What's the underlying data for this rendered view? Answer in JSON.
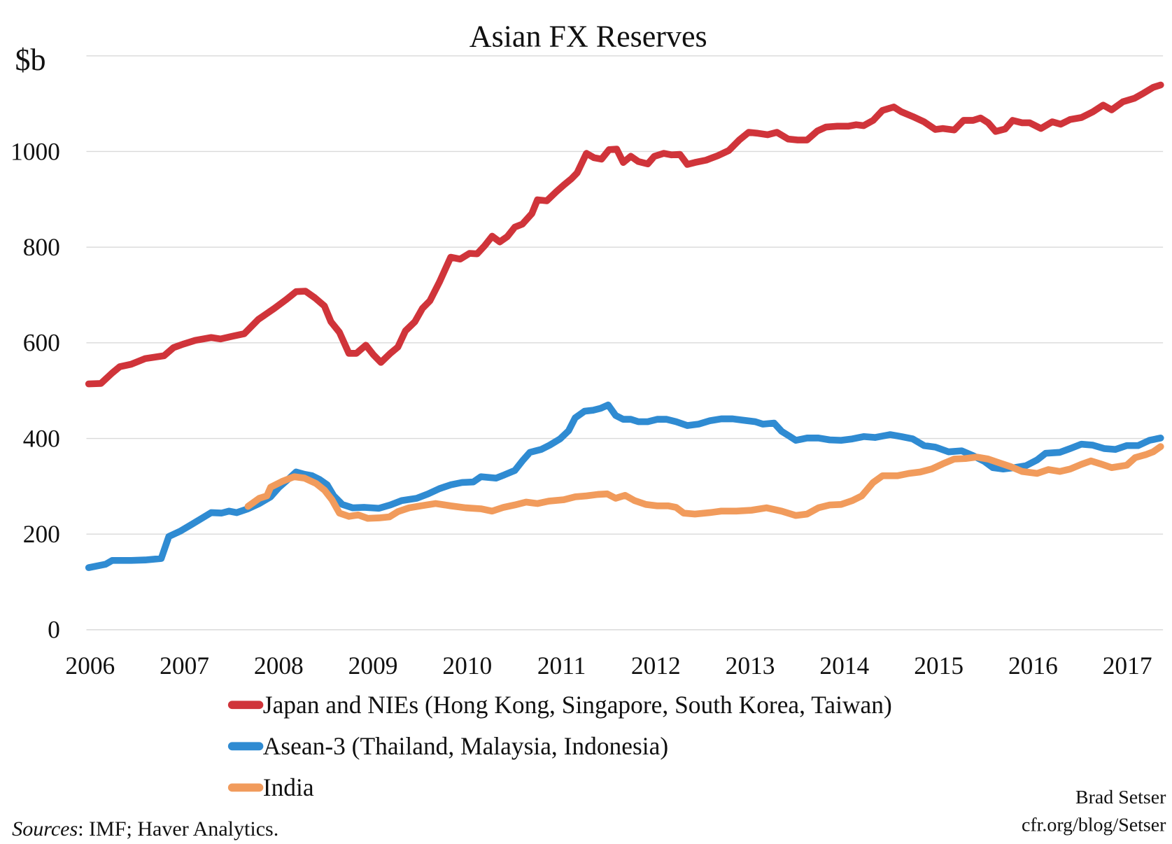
{
  "chart_data": {
    "type": "line",
    "title": "Asian FX Reserves",
    "ylabel": "$b",
    "xlabel": "",
    "ylim": [
      0,
      1200
    ],
    "yticks": [
      0,
      200,
      400,
      600,
      800,
      1000
    ],
    "xlim": [
      2006,
      2017.4
    ],
    "xticks": [
      "2006",
      "2007",
      "2008",
      "2009",
      "2010",
      "2011",
      "2012",
      "2013",
      "2014",
      "2015",
      "2016",
      "2017"
    ],
    "grid": true,
    "legend_position": "bottom",
    "series": [
      {
        "name": "Japan and NIEs (Hong Kong, Singapore, South Korea, Taiwan)",
        "color": "#d0343a",
        "points": [
          [
            2006.0,
            514
          ],
          [
            2006.13,
            515
          ],
          [
            2006.25,
            537
          ],
          [
            2006.33,
            550
          ],
          [
            2006.45,
            555
          ],
          [
            2006.6,
            567
          ],
          [
            2006.8,
            573
          ],
          [
            2006.9,
            590
          ],
          [
            2007.0,
            597
          ],
          [
            2007.13,
            605
          ],
          [
            2007.3,
            611
          ],
          [
            2007.4,
            608
          ],
          [
            2007.53,
            614
          ],
          [
            2007.65,
            619
          ],
          [
            2007.8,
            649
          ],
          [
            2007.97,
            672
          ],
          [
            2008.1,
            691
          ],
          [
            2008.2,
            707
          ],
          [
            2008.3,
            708
          ],
          [
            2008.4,
            694
          ],
          [
            2008.5,
            677
          ],
          [
            2008.57,
            644
          ],
          [
            2008.66,
            622
          ],
          [
            2008.76,
            578
          ],
          [
            2008.84,
            578
          ],
          [
            2008.94,
            595
          ],
          [
            2009.02,
            575
          ],
          [
            2009.1,
            559
          ],
          [
            2009.2,
            578
          ],
          [
            2009.28,
            591
          ],
          [
            2009.36,
            625
          ],
          [
            2009.46,
            644
          ],
          [
            2009.54,
            672
          ],
          [
            2009.62,
            688
          ],
          [
            2009.72,
            727
          ],
          [
            2009.84,
            779
          ],
          [
            2009.94,
            775
          ],
          [
            2010.04,
            787
          ],
          [
            2010.12,
            786
          ],
          [
            2010.2,
            803
          ],
          [
            2010.28,
            823
          ],
          [
            2010.36,
            811
          ],
          [
            2010.44,
            822
          ],
          [
            2010.52,
            842
          ],
          [
            2010.6,
            848
          ],
          [
            2010.7,
            870
          ],
          [
            2010.76,
            899
          ],
          [
            2010.86,
            897
          ],
          [
            2010.96,
            916
          ],
          [
            2011.04,
            930
          ],
          [
            2011.12,
            943
          ],
          [
            2011.18,
            955
          ],
          [
            2011.28,
            996
          ],
          [
            2011.36,
            987
          ],
          [
            2011.44,
            984
          ],
          [
            2011.52,
            1004
          ],
          [
            2011.6,
            1005
          ],
          [
            2011.67,
            977
          ],
          [
            2011.75,
            990
          ],
          [
            2011.83,
            979
          ],
          [
            2011.93,
            974
          ],
          [
            2012.0,
            990
          ],
          [
            2012.1,
            996
          ],
          [
            2012.18,
            993
          ],
          [
            2012.27,
            994
          ],
          [
            2012.35,
            973
          ],
          [
            2012.43,
            977
          ],
          [
            2012.55,
            982
          ],
          [
            2012.67,
            991
          ],
          [
            2012.79,
            1002
          ],
          [
            2012.9,
            1024
          ],
          [
            2013.0,
            1040
          ],
          [
            2013.1,
            1038
          ],
          [
            2013.2,
            1035
          ],
          [
            2013.3,
            1040
          ],
          [
            2013.42,
            1026
          ],
          [
            2013.52,
            1024
          ],
          [
            2013.62,
            1024
          ],
          [
            2013.73,
            1043
          ],
          [
            2013.82,
            1051
          ],
          [
            2013.94,
            1053
          ],
          [
            2014.06,
            1053
          ],
          [
            2014.14,
            1056
          ],
          [
            2014.22,
            1054
          ],
          [
            2014.32,
            1065
          ],
          [
            2014.42,
            1086
          ],
          [
            2014.54,
            1093
          ],
          [
            2014.62,
            1083
          ],
          [
            2014.74,
            1073
          ],
          [
            2014.86,
            1062
          ],
          [
            2014.98,
            1046
          ],
          [
            2015.06,
            1048
          ],
          [
            2015.18,
            1045
          ],
          [
            2015.28,
            1065
          ],
          [
            2015.38,
            1065
          ],
          [
            2015.46,
            1070
          ],
          [
            2015.54,
            1060
          ],
          [
            2015.62,
            1042
          ],
          [
            2015.72,
            1047
          ],
          [
            2015.8,
            1065
          ],
          [
            2015.9,
            1060
          ],
          [
            2015.98,
            1060
          ],
          [
            2016.1,
            1048
          ],
          [
            2016.22,
            1062
          ],
          [
            2016.31,
            1057
          ],
          [
            2016.41,
            1067
          ],
          [
            2016.53,
            1071
          ],
          [
            2016.65,
            1083
          ],
          [
            2016.76,
            1097
          ],
          [
            2016.85,
            1087
          ],
          [
            2016.97,
            1104
          ],
          [
            2017.09,
            1111
          ],
          [
            2017.19,
            1122
          ],
          [
            2017.29,
            1134
          ],
          [
            2017.37,
            1139
          ]
        ]
      },
      {
        "name": "Asean-3 (Thailand, Malaysia, Indonesia)",
        "color": "#2f8bd2",
        "points": [
          [
            2006.0,
            130
          ],
          [
            2006.18,
            137
          ],
          [
            2006.25,
            145
          ],
          [
            2006.45,
            145
          ],
          [
            2006.6,
            146
          ],
          [
            2006.77,
            149
          ],
          [
            2006.85,
            195
          ],
          [
            2006.97,
            206
          ],
          [
            2007.09,
            220
          ],
          [
            2007.2,
            233
          ],
          [
            2007.3,
            245
          ],
          [
            2007.41,
            244
          ],
          [
            2007.49,
            248
          ],
          [
            2007.57,
            245
          ],
          [
            2007.69,
            253
          ],
          [
            2007.81,
            264
          ],
          [
            2007.93,
            278
          ],
          [
            2008.02,
            298
          ],
          [
            2008.13,
            317
          ],
          [
            2008.2,
            330
          ],
          [
            2008.29,
            325
          ],
          [
            2008.37,
            322
          ],
          [
            2008.45,
            314
          ],
          [
            2008.53,
            303
          ],
          [
            2008.6,
            280
          ],
          [
            2008.69,
            262
          ],
          [
            2008.8,
            255
          ],
          [
            2008.92,
            256
          ],
          [
            2009.08,
            254
          ],
          [
            2009.2,
            261
          ],
          [
            2009.32,
            270
          ],
          [
            2009.48,
            275
          ],
          [
            2009.6,
            284
          ],
          [
            2009.72,
            295
          ],
          [
            2009.84,
            303
          ],
          [
            2009.96,
            308
          ],
          [
            2010.08,
            309
          ],
          [
            2010.16,
            320
          ],
          [
            2010.32,
            317
          ],
          [
            2010.41,
            324
          ],
          [
            2010.52,
            333
          ],
          [
            2010.6,
            353
          ],
          [
            2010.68,
            371
          ],
          [
            2010.8,
            377
          ],
          [
            2010.89,
            386
          ],
          [
            2011.0,
            399
          ],
          [
            2011.09,
            416
          ],
          [
            2011.16,
            443
          ],
          [
            2011.26,
            457
          ],
          [
            2011.35,
            459
          ],
          [
            2011.43,
            463
          ],
          [
            2011.51,
            470
          ],
          [
            2011.59,
            448
          ],
          [
            2011.67,
            440
          ],
          [
            2011.75,
            440
          ],
          [
            2011.83,
            435
          ],
          [
            2011.93,
            435
          ],
          [
            2012.03,
            440
          ],
          [
            2012.13,
            440
          ],
          [
            2012.23,
            435
          ],
          [
            2012.35,
            427
          ],
          [
            2012.47,
            430
          ],
          [
            2012.59,
            437
          ],
          [
            2012.71,
            441
          ],
          [
            2012.83,
            441
          ],
          [
            2012.95,
            438
          ],
          [
            2013.07,
            435
          ],
          [
            2013.15,
            430
          ],
          [
            2013.27,
            432
          ],
          [
            2013.35,
            415
          ],
          [
            2013.43,
            405
          ],
          [
            2013.5,
            396
          ],
          [
            2013.62,
            401
          ],
          [
            2013.74,
            401
          ],
          [
            2013.86,
            397
          ],
          [
            2013.98,
            396
          ],
          [
            2014.1,
            399
          ],
          [
            2014.22,
            404
          ],
          [
            2014.34,
            402
          ],
          [
            2014.5,
            408
          ],
          [
            2014.62,
            404
          ],
          [
            2014.74,
            399
          ],
          [
            2014.86,
            385
          ],
          [
            2014.98,
            382
          ],
          [
            2015.12,
            372
          ],
          [
            2015.26,
            374
          ],
          [
            2015.38,
            364
          ],
          [
            2015.5,
            352
          ],
          [
            2015.59,
            339
          ],
          [
            2015.7,
            336
          ],
          [
            2015.82,
            339
          ],
          [
            2015.94,
            343
          ],
          [
            2016.06,
            355
          ],
          [
            2016.15,
            369
          ],
          [
            2016.3,
            371
          ],
          [
            2016.41,
            379
          ],
          [
            2016.53,
            388
          ],
          [
            2016.65,
            386
          ],
          [
            2016.77,
            379
          ],
          [
            2016.89,
            377
          ],
          [
            2017.01,
            385
          ],
          [
            2017.13,
            385
          ],
          [
            2017.25,
            396
          ],
          [
            2017.37,
            401
          ]
        ]
      },
      {
        "name": "India",
        "color": "#f19b5c",
        "points": [
          [
            2007.69,
            258
          ],
          [
            2007.81,
            275
          ],
          [
            2007.89,
            280
          ],
          [
            2007.93,
            298
          ],
          [
            2008.05,
            310
          ],
          [
            2008.18,
            320
          ],
          [
            2008.29,
            317
          ],
          [
            2008.41,
            306
          ],
          [
            2008.5,
            292
          ],
          [
            2008.58,
            272
          ],
          [
            2008.66,
            244
          ],
          [
            2008.76,
            237
          ],
          [
            2008.86,
            240
          ],
          [
            2008.96,
            233
          ],
          [
            2009.08,
            234
          ],
          [
            2009.19,
            236
          ],
          [
            2009.28,
            247
          ],
          [
            2009.4,
            255
          ],
          [
            2009.52,
            259
          ],
          [
            2009.68,
            264
          ],
          [
            2009.84,
            259
          ],
          [
            2010.0,
            255
          ],
          [
            2010.16,
            253
          ],
          [
            2010.28,
            248
          ],
          [
            2010.4,
            256
          ],
          [
            2010.52,
            261
          ],
          [
            2010.64,
            267
          ],
          [
            2010.76,
            264
          ],
          [
            2010.88,
            269
          ],
          [
            2011.04,
            272
          ],
          [
            2011.16,
            278
          ],
          [
            2011.28,
            280
          ],
          [
            2011.4,
            283
          ],
          [
            2011.5,
            284
          ],
          [
            2011.59,
            275
          ],
          [
            2011.69,
            281
          ],
          [
            2011.79,
            270
          ],
          [
            2011.91,
            262
          ],
          [
            2012.03,
            259
          ],
          [
            2012.15,
            259
          ],
          [
            2012.23,
            256
          ],
          [
            2012.31,
            244
          ],
          [
            2012.43,
            242
          ],
          [
            2012.59,
            245
          ],
          [
            2012.71,
            248
          ],
          [
            2012.87,
            248
          ],
          [
            2013.03,
            250
          ],
          [
            2013.19,
            255
          ],
          [
            2013.35,
            248
          ],
          [
            2013.5,
            239
          ],
          [
            2013.62,
            242
          ],
          [
            2013.74,
            255
          ],
          [
            2013.86,
            261
          ],
          [
            2013.98,
            262
          ],
          [
            2014.1,
            270
          ],
          [
            2014.2,
            280
          ],
          [
            2014.32,
            308
          ],
          [
            2014.42,
            322
          ],
          [
            2014.58,
            322
          ],
          [
            2014.7,
            327
          ],
          [
            2014.82,
            330
          ],
          [
            2014.94,
            336
          ],
          [
            2015.06,
            347
          ],
          [
            2015.18,
            357
          ],
          [
            2015.3,
            358
          ],
          [
            2015.42,
            361
          ],
          [
            2015.54,
            357
          ],
          [
            2015.66,
            349
          ],
          [
            2015.78,
            341
          ],
          [
            2015.9,
            331
          ],
          [
            2016.06,
            327
          ],
          [
            2016.18,
            335
          ],
          [
            2016.3,
            331
          ],
          [
            2016.41,
            336
          ],
          [
            2016.53,
            346
          ],
          [
            2016.63,
            353
          ],
          [
            2016.73,
            347
          ],
          [
            2016.85,
            339
          ],
          [
            2017.01,
            344
          ],
          [
            2017.1,
            360
          ],
          [
            2017.21,
            366
          ],
          [
            2017.29,
            372
          ],
          [
            2017.37,
            383
          ]
        ]
      }
    ]
  },
  "footer": {
    "sources_label": "Sources",
    "sources_text": ": IMF; Haver Analytics.",
    "author": "Brad Setser",
    "url": "cfr.org/blog/Setser"
  }
}
